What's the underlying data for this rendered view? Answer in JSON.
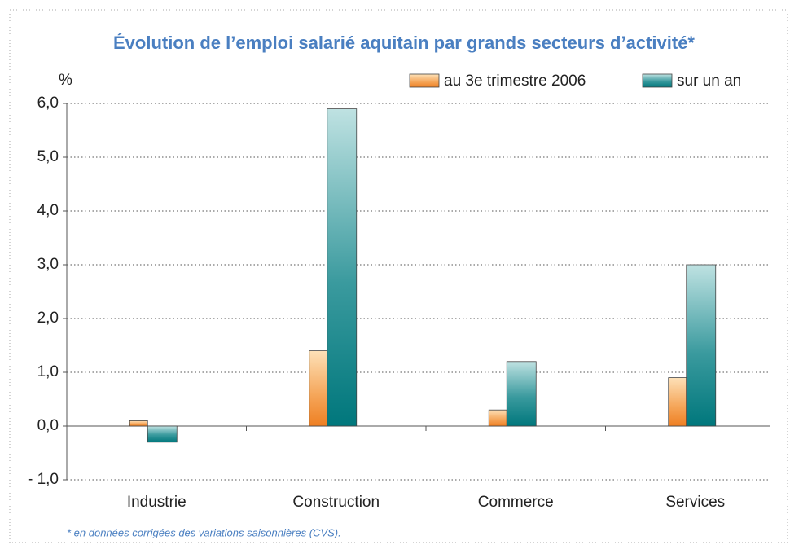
{
  "chart_data": {
    "type": "bar",
    "title": "Évolution de l’emploi salarié aquitain par grands secteurs d’activité*",
    "y_label": "%",
    "footnote": "* en données corrigées des variations saisonnières (CVS).",
    "categories": [
      "Industrie",
      "Construction",
      "Commerce",
      "Services"
    ],
    "series": [
      {
        "name": "au 3e trimestre 2006",
        "color": "#f08a2c",
        "values": [
          0.1,
          1.4,
          0.3,
          0.9
        ]
      },
      {
        "name": "sur un an",
        "color": "#00787d",
        "values": [
          -0.3,
          5.9,
          1.2,
          3.0
        ]
      }
    ],
    "ylim": [
      -1,
      6
    ],
    "yticks": [
      {
        "value": -1,
        "label": "- 1,0"
      },
      {
        "value": 0,
        "label": "0,0"
      },
      {
        "value": 1,
        "label": "1,0"
      },
      {
        "value": 2,
        "label": "2,0"
      },
      {
        "value": 3,
        "label": "3,0"
      },
      {
        "value": 4,
        "label": "4,0"
      },
      {
        "value": 5,
        "label": "5,0"
      },
      {
        "value": 6,
        "label": "6,0"
      }
    ],
    "grid": true
  }
}
